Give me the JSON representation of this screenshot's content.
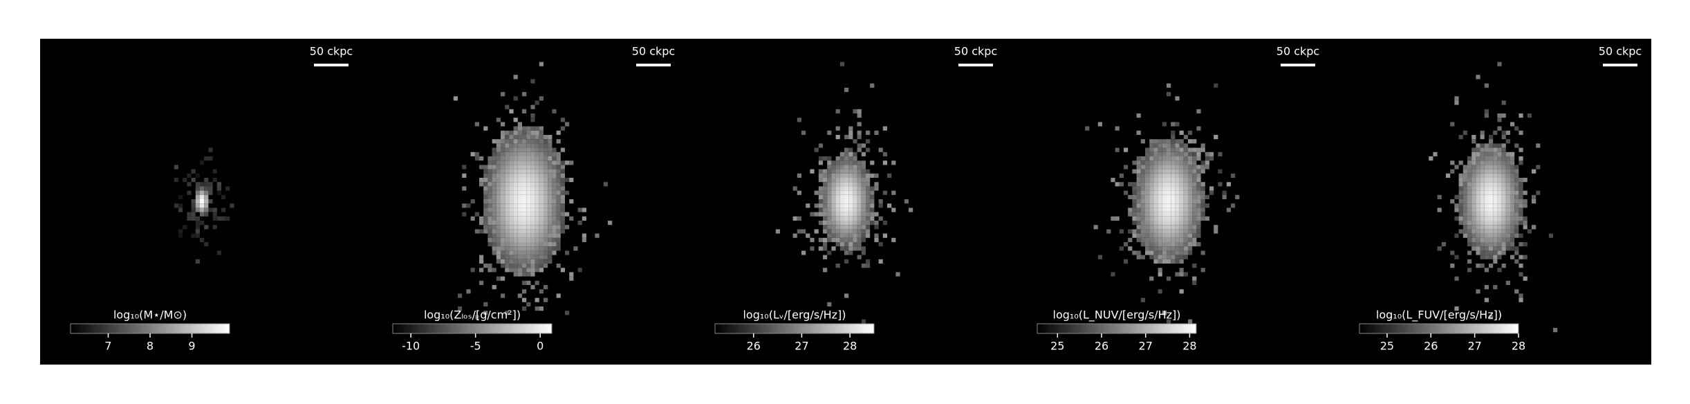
{
  "chart_data": [
    {
      "type": "image",
      "scalebar_label": "50 ckpc",
      "colorbar_label": "log₁₀(M⋆/M⊙)",
      "colorbar_lim": [
        6.1,
        9.9
      ],
      "colorbar_ticks": [
        7,
        8,
        9
      ]
    },
    {
      "type": "image",
      "scalebar_label": "50 ckpc",
      "colorbar_label": "log₁₀(Zₗₒₛ/[g/cm²])",
      "colorbar_lim": [
        -11.4,
        0.9
      ],
      "colorbar_ticks": [
        -10,
        -5,
        0
      ]
    },
    {
      "type": "image",
      "scalebar_label": "50 ckpc",
      "colorbar_label": "log₁₀(Lᵥ/[erg/s/Hz])",
      "colorbar_lim": [
        25.2,
        28.5
      ],
      "colorbar_ticks": [
        26,
        27,
        28
      ]
    },
    {
      "type": "image",
      "scalebar_label": "50 ckpc",
      "colorbar_label": "log₁₀(L_NUV/[erg/s/Hz])",
      "colorbar_lim": [
        24.54,
        28.15
      ],
      "colorbar_ticks": [
        25,
        26,
        27,
        28
      ]
    },
    {
      "type": "image",
      "scalebar_label": "50 ckpc",
      "colorbar_label": "log₁₀(L_FUV/[erg/s/Hz])",
      "colorbar_lim": [
        24.37,
        28
      ],
      "colorbar_ticks": [
        25,
        26,
        27,
        28
      ]
    }
  ]
}
